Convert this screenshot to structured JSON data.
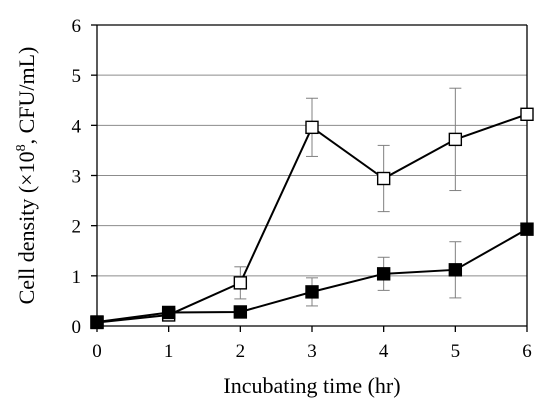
{
  "chart_data": {
    "type": "line",
    "title": "",
    "xlabel": "Incubating time (hr)",
    "ylabel": {
      "prefix": "Cell density (×10",
      "exponent": "8",
      "suffix": ", CFU/mL)"
    },
    "xlim": [
      0,
      6
    ],
    "ylim": [
      0,
      6
    ],
    "x_ticks": [
      0,
      1,
      2,
      3,
      4,
      5,
      6
    ],
    "y_ticks": [
      0,
      1,
      2,
      3,
      4,
      5,
      6
    ],
    "grid": {
      "horizontal": true,
      "vertical": false
    },
    "legend": "none",
    "x": [
      0,
      1,
      2,
      3,
      4,
      5,
      6
    ],
    "series": [
      {
        "marker": "open-square",
        "values": [
          0.07,
          0.22,
          0.86,
          3.96,
          2.94,
          3.72,
          4.22
        ],
        "error": [
          0.03,
          0.1,
          0.32,
          0.58,
          0.66,
          1.02,
          0
        ]
      },
      {
        "marker": "filled-square",
        "values": [
          0.08,
          0.27,
          0.28,
          0.68,
          1.04,
          1.12,
          1.93
        ],
        "error": [
          0.03,
          0.1,
          0.05,
          0.28,
          0.33,
          0.56,
          0
        ]
      }
    ],
    "colors": {
      "line": "#000000",
      "grid": "#8c8c8c",
      "error_bar": "#808080",
      "open_fill": "#ffffff",
      "filled_fill": "#000000"
    }
  }
}
